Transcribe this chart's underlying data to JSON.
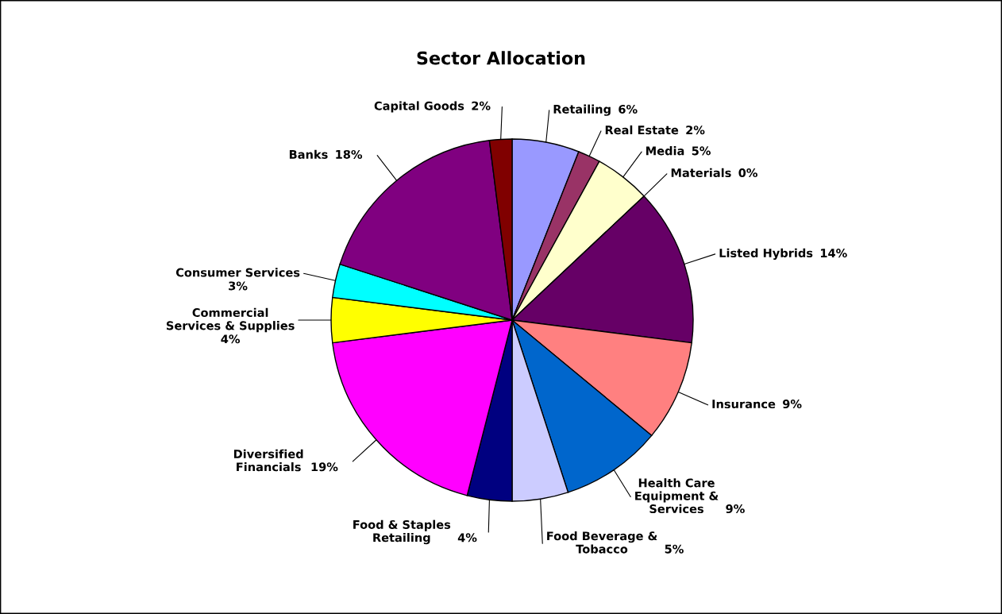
{
  "chart_data": {
    "type": "pie",
    "title": "Sector Allocation",
    "categories": [
      "Retailing",
      "Real Estate",
      "Media",
      "Materials",
      "Listed Hybrids",
      "Insurance",
      "Health Care\nEquipment &\nServices",
      "Food Beverage &\nTobacco",
      "Food & Staples\nRetailing",
      "Diversified\nFinancials",
      "Commercial\nServices & Supplies",
      "Consumer Services",
      "Banks",
      "Capital Goods"
    ],
    "values": [
      6,
      2,
      5,
      0,
      14,
      9,
      9,
      5,
      4,
      19,
      4,
      3,
      18,
      2
    ],
    "value_labels": [
      "6%",
      "2%",
      "5%",
      "0%",
      "14%",
      "9%",
      "9%",
      "5%",
      "4%",
      "19%",
      "4%",
      "3%",
      "18%",
      "2%"
    ],
    "colors": [
      "#9999ff",
      "#993366",
      "#ffffcc",
      "#ccffff",
      "#660066",
      "#ff8080",
      "#0066cc",
      "#ccccff",
      "#000080",
      "#ff00ff",
      "#ffff00",
      "#00ffff",
      "#800080",
      "#800000"
    ],
    "legend": false
  }
}
